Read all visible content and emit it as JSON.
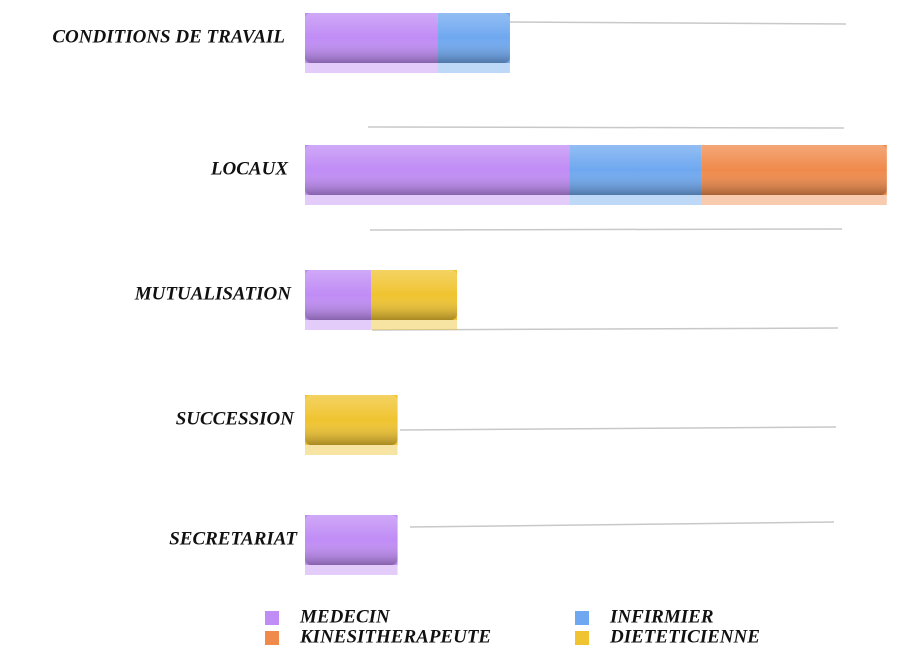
{
  "chart_data": {
    "type": "bar",
    "orientation": "horizontal",
    "stacked": true,
    "categories": [
      "CONDITIONS DE TRAVAIL",
      "LOCAUX",
      "MUTUALISATION",
      "SUCCESSION",
      "SECRETARIAT"
    ],
    "series": [
      {
        "name": "MEDECIN",
        "color": "#c08cf5",
        "values": [
          2,
          4,
          1,
          null,
          1.4
        ]
      },
      {
        "name": "INFIRMIER",
        "color": "#6fa8f0",
        "values": [
          1.1,
          2,
          null,
          null,
          null
        ]
      },
      {
        "name": "KINESITHERAPEUTE",
        "color": "#f08a4b",
        "values": [
          null,
          2.8,
          null,
          null,
          null
        ]
      },
      {
        "name": "DIETETICIENNE",
        "color": "#f0c430",
        "values": [
          null,
          null,
          1.3,
          1.4,
          null
        ]
      }
    ],
    "xlim": [
      0,
      9
    ]
  }
}
